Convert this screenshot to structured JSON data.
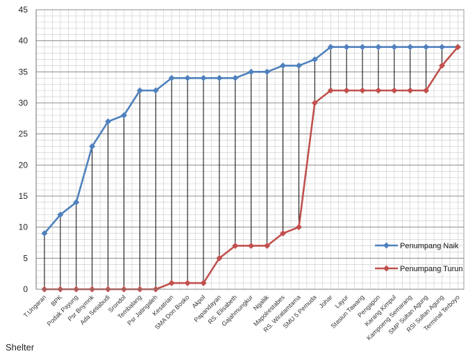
{
  "chart_data": {
    "type": "line",
    "title": "",
    "xlabel": "Shelter",
    "ylabel": "",
    "ylim": [
      0,
      45
    ],
    "yticks": [
      0,
      5,
      10,
      15,
      20,
      25,
      30,
      35,
      40,
      45
    ],
    "grid": true,
    "legend_position": "right",
    "categories": [
      "T.Ungaran",
      "BPK",
      "Podak Payung",
      "Psr Bnymnk",
      "Ada Setiabudi",
      "Srondol",
      "Tembalang",
      "Psr Jatingaleh",
      "Kesatrian",
      "SMA Don Bosko",
      "Akpol",
      "Papandayan",
      "RS. Elisabeth",
      "Gajahmungkur",
      "Ngaliik",
      "Mapolrestabes",
      "RS. Wiratamtama",
      "SMU 5 Pemuda",
      "Johar",
      "Layur",
      "Stasiun Tawang",
      "Pengapon",
      "Karang Kimpul",
      "Kampoeng Semarang",
      "SMP Sultan Agung",
      "RSI Sultan Agung",
      "Terminal Terboyo"
    ],
    "series": [
      {
        "name": "Penumpang Naik",
        "color": "#4f81bd",
        "values": [
          9,
          12,
          14,
          23,
          27,
          28,
          32,
          32,
          34,
          34,
          34,
          34,
          34,
          35,
          35,
          36,
          36,
          37,
          39,
          39,
          39,
          39,
          39,
          39,
          39,
          39,
          39
        ]
      },
      {
        "name": "Penumpang Turun",
        "color": "#c0504d",
        "values": [
          0,
          0,
          0,
          0,
          0,
          0,
          0,
          0,
          1,
          1,
          1,
          5,
          7,
          7,
          7,
          9,
          10,
          30,
          32,
          32,
          32,
          32,
          32,
          32,
          32,
          36,
          39
        ]
      }
    ]
  }
}
